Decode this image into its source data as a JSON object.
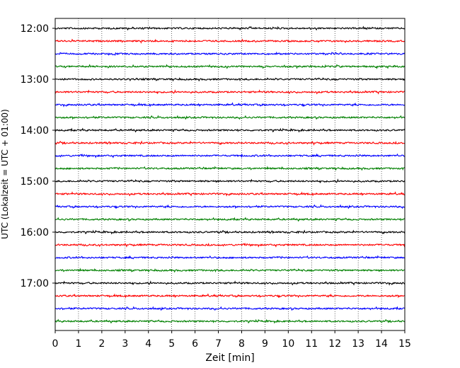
{
  "chart_data": {
    "type": "line",
    "title": "",
    "xlabel": "Zeit  [min]",
    "ylabel": "UTC (Lokalzeit = UTC + 01:00)",
    "xlim": [
      0,
      15
    ],
    "x_ticks": [
      "0",
      "1",
      "2",
      "3",
      "4",
      "5",
      "6",
      "7",
      "8",
      "9",
      "10",
      "11",
      "12",
      "13",
      "14",
      "15"
    ],
    "y_ticks": [
      "12:00",
      "13:00",
      "14:00",
      "15:00",
      "16:00",
      "17:00"
    ],
    "grid": "vertical dotted",
    "trace_interval_min": 15,
    "start_time": "12:00",
    "color_cycle": [
      "#000000",
      "#ff0000",
      "#0000ff",
      "#008000"
    ],
    "series": [
      {
        "start": "12:00",
        "color": "#000000"
      },
      {
        "start": "12:15",
        "color": "#ff0000"
      },
      {
        "start": "12:30",
        "color": "#0000ff"
      },
      {
        "start": "12:45",
        "color": "#008000"
      },
      {
        "start": "13:00",
        "color": "#000000"
      },
      {
        "start": "13:15",
        "color": "#ff0000"
      },
      {
        "start": "13:30",
        "color": "#0000ff"
      },
      {
        "start": "13:45",
        "color": "#008000"
      },
      {
        "start": "14:00",
        "color": "#000000"
      },
      {
        "start": "14:15",
        "color": "#ff0000"
      },
      {
        "start": "14:30",
        "color": "#0000ff"
      },
      {
        "start": "14:45",
        "color": "#008000"
      },
      {
        "start": "15:00",
        "color": "#000000"
      },
      {
        "start": "15:15",
        "color": "#ff0000"
      },
      {
        "start": "15:30",
        "color": "#0000ff"
      },
      {
        "start": "15:45",
        "color": "#008000"
      },
      {
        "start": "16:00",
        "color": "#000000"
      },
      {
        "start": "16:15",
        "color": "#ff0000"
      },
      {
        "start": "16:30",
        "color": "#0000ff"
      },
      {
        "start": "16:45",
        "color": "#008000"
      },
      {
        "start": "17:00",
        "color": "#000000"
      },
      {
        "start": "17:15",
        "color": "#ff0000"
      },
      {
        "start": "17:30",
        "color": "#0000ff"
      },
      {
        "start": "17:45",
        "color": "#008000"
      }
    ]
  }
}
